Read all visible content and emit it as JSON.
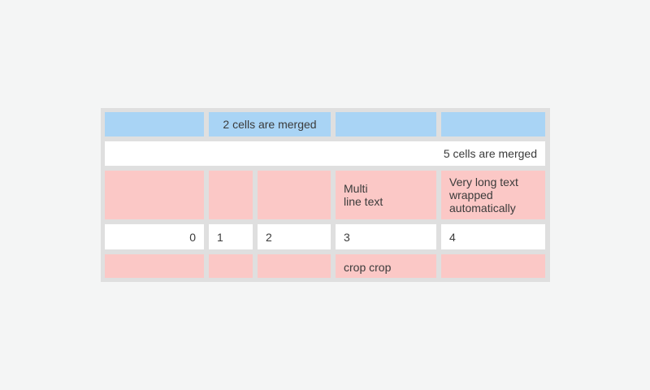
{
  "window": {
    "background": "#f4f5f5"
  },
  "table": {
    "background": "#dfdfdf",
    "text_color": "#3b3b3b",
    "cell_colors": {
      "blue": "#a9d4f5",
      "pink": "#fbc8c6",
      "white": "#ffffff"
    },
    "columns": 5,
    "rows": [
      {
        "cells": [
          {
            "text": "",
            "bg": "blue",
            "colspan": 1
          },
          {
            "text": "2 cells are merged",
            "bg": "blue",
            "colspan": 2,
            "align": "center"
          },
          {
            "text": "",
            "bg": "blue",
            "colspan": 1
          },
          {
            "text": "",
            "bg": "blue",
            "colspan": 1
          }
        ]
      },
      {
        "cells": [
          {
            "text": "5 cells are merged",
            "bg": "white",
            "colspan": 5,
            "align": "right"
          }
        ]
      },
      {
        "cells": [
          {
            "text": "",
            "bg": "pink",
            "colspan": 1
          },
          {
            "text": "",
            "bg": "pink",
            "colspan": 1
          },
          {
            "text": "",
            "bg": "pink",
            "colspan": 1
          },
          {
            "text": "Multi\nline text",
            "bg": "pink",
            "colspan": 1,
            "align": "left"
          },
          {
            "text": "Very long text wrapped automatically",
            "bg": "pink",
            "colspan": 1,
            "align": "left"
          }
        ]
      },
      {
        "cells": [
          {
            "text": "0",
            "bg": "white",
            "colspan": 1,
            "align": "right"
          },
          {
            "text": "1",
            "bg": "white",
            "colspan": 1,
            "align": "left"
          },
          {
            "text": "2",
            "bg": "white",
            "colspan": 1,
            "align": "left"
          },
          {
            "text": "3",
            "bg": "white",
            "colspan": 1,
            "align": "left"
          },
          {
            "text": "4",
            "bg": "white",
            "colspan": 1,
            "align": "left"
          }
        ]
      },
      {
        "cells": [
          {
            "text": "",
            "bg": "pink",
            "colspan": 1
          },
          {
            "text": "",
            "bg": "pink",
            "colspan": 1
          },
          {
            "text": "",
            "bg": "pink",
            "colspan": 1
          },
          {
            "text": "crop crop\ncrop crop",
            "bg": "pink",
            "colspan": 1,
            "align": "left",
            "note_clipped": true
          },
          {
            "text": "",
            "bg": "pink",
            "colspan": 1
          }
        ]
      }
    ]
  }
}
